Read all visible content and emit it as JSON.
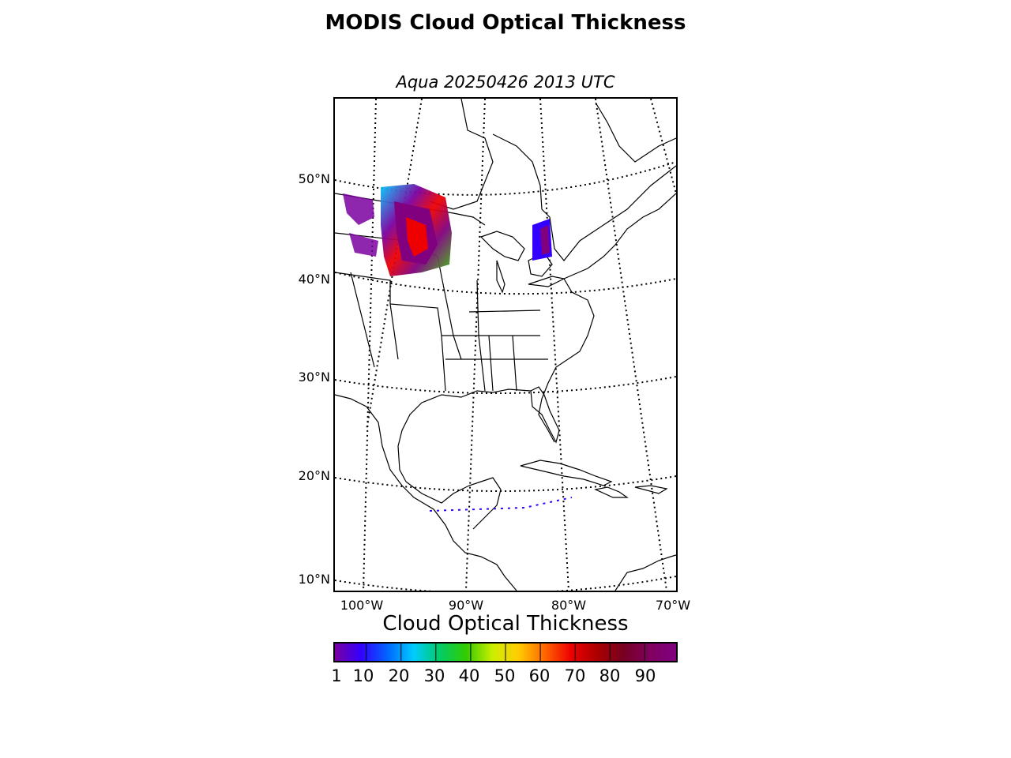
{
  "title": "MODIS Cloud Optical Thickness",
  "subtitle": "Aqua 20250426 2013 UTC",
  "map": {
    "projection": "lambert-conformal",
    "lat_labels": [
      "50°N",
      "40°N",
      "30°N",
      "20°N",
      "10°N"
    ],
    "lon_labels": [
      "100°W",
      "90°W",
      "80°W",
      "70°W"
    ],
    "coastline_color": "#000000",
    "graticule_style": "dotted"
  },
  "colorbar": {
    "title": "Cloud Optical Thickness",
    "tick_labels": [
      "1",
      "10",
      "20",
      "30",
      "40",
      "50",
      "60",
      "70",
      "80",
      "90"
    ],
    "colormap": [
      "#7a00a0",
      "#3300ff",
      "#0066ff",
      "#00ccff",
      "#00cc66",
      "#33cc00",
      "#ccee00",
      "#ffcc00",
      "#ff6600",
      "#ee0000",
      "#aa0000",
      "#770022",
      "#800060",
      "#800080"
    ]
  }
}
